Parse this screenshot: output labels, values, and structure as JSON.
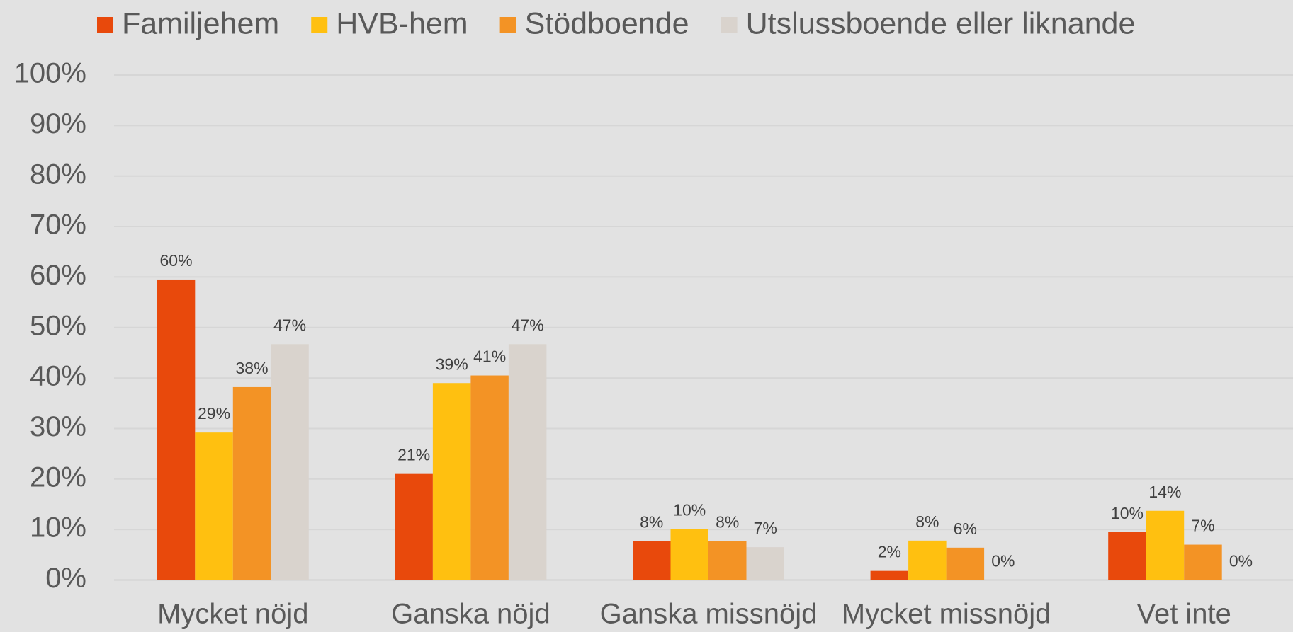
{
  "chart_data": {
    "type": "bar",
    "categories": [
      "Mycket nöjd",
      "Ganska nöjd",
      "Ganska missnöjd",
      "Mycket missnöjd",
      "Vet inte"
    ],
    "series": [
      {
        "name": "Familjehem",
        "color": "#e8490c",
        "values": [
          59.5,
          21.0,
          7.7,
          1.8,
          9.5
        ],
        "value_labels": [
          "60%",
          "21%",
          "8%",
          "2%",
          "10%"
        ]
      },
      {
        "name": "HVB-hem",
        "color": "#ffc010",
        "values": [
          29.2,
          39.0,
          10.1,
          7.8,
          13.7
        ],
        "value_labels": [
          "29%",
          "39%",
          "10%",
          "8%",
          "14%"
        ]
      },
      {
        "name": "Stödboende",
        "color": "#f39325",
        "values": [
          38.2,
          40.5,
          7.7,
          6.4,
          7.0
        ],
        "value_labels": [
          "38%",
          "41%",
          "8%",
          "6%",
          "7%"
        ]
      },
      {
        "name": "Utslussboende eller liknande",
        "color": "#d9d3cd",
        "values": [
          46.7,
          46.7,
          6.5,
          0,
          0
        ],
        "value_labels": [
          "47%",
          "47%",
          "7%",
          "0%",
          "0%"
        ]
      }
    ],
    "ylim": [
      0,
      100
    ],
    "yticks": [
      {
        "value": 0,
        "label": "0%"
      },
      {
        "value": 10,
        "label": "10%"
      },
      {
        "value": 20,
        "label": "20%"
      },
      {
        "value": 30,
        "label": "30%"
      },
      {
        "value": 40,
        "label": "40%"
      },
      {
        "value": 50,
        "label": "50%"
      },
      {
        "value": 60,
        "label": "60%"
      },
      {
        "value": 70,
        "label": "70%"
      },
      {
        "value": 80,
        "label": "80%"
      },
      {
        "value": 90,
        "label": "90%"
      },
      {
        "value": 100,
        "label": "100%"
      }
    ],
    "grid": true,
    "legend": "top"
  }
}
